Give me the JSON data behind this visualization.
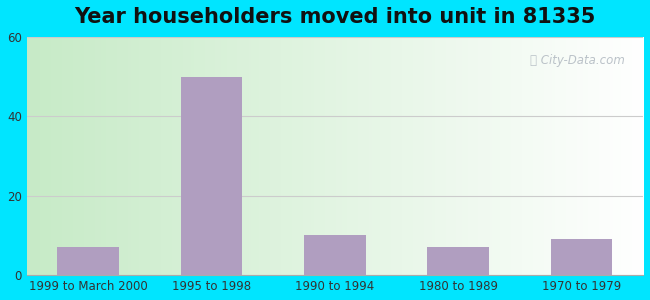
{
  "title": "Year householders moved into unit in 81335",
  "categories": [
    "1999 to March 2000",
    "1995 to 1998",
    "1990 to 1994",
    "1980 to 1989",
    "1970 to 1979"
  ],
  "values": [
    7,
    50,
    10,
    7,
    9
  ],
  "bar_color": "#b09ec0",
  "ylim": [
    0,
    60
  ],
  "yticks": [
    0,
    20,
    40,
    60
  ],
  "outer_bg": "#00e5ff",
  "grid_color": "#cccccc",
  "title_fontsize": 15,
  "tick_fontsize": 8.5,
  "watermark": "City-Data.com"
}
